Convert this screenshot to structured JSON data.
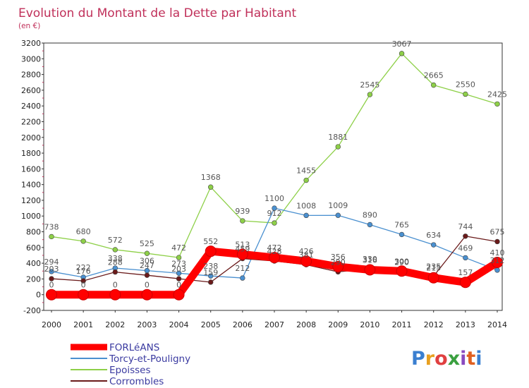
{
  "chart_data": {
    "type": "line",
    "title": "Evolution du Montant de la Dette par Habitant",
    "subtitle": "(en €)",
    "xlabel": "",
    "ylabel": "",
    "x": [
      "2000",
      "2001",
      "2002",
      "2003",
      "2004",
      "2005",
      "2006",
      "2007",
      "2008",
      "2009",
      "2010",
      "2011",
      "2012",
      "2013",
      "2014"
    ],
    "ylim": [
      -200,
      3200
    ],
    "yticks": [
      -200,
      0,
      200,
      400,
      600,
      800,
      1000,
      1200,
      1400,
      1600,
      1800,
      2000,
      2200,
      2400,
      2600,
      2800,
      3000,
      3200
    ],
    "grid": false,
    "legend_position": "bottom-left",
    "series": [
      {
        "name": "FORLéANS",
        "color": "#ff0000",
        "values": [
          0,
          0,
          0,
          0,
          0,
          552,
          513,
          472,
          426,
          356,
          316,
          300,
          215,
          157,
          410
        ],
        "labels": [
          "0",
          "0",
          "0",
          "0",
          "0",
          "552",
          "513",
          "472",
          "426",
          "356",
          "316",
          "300",
          "215",
          "157",
          "410"
        ]
      },
      {
        "name": "Torcy-et-Pouligny",
        "color": "#4a90d0",
        "values": [
          294,
          222,
          338,
          306,
          273,
          238,
          212,
          1100,
          1008,
          1009,
          890,
          765,
          634,
          469,
          312
        ],
        "labels": [
          "294",
          "222",
          "338",
          "306",
          "273",
          "238",
          "212",
          "1100",
          "1008",
          "1009",
          "890",
          "765",
          "634",
          "469",
          "312"
        ]
      },
      {
        "name": "Epoisses",
        "color": "#8ed048",
        "values": [
          738,
          680,
          572,
          525,
          472,
          1368,
          939,
          912,
          1455,
          1881,
          2545,
          3067,
          2665,
          2550,
          2425
        ],
        "labels": [
          "738",
          "680",
          "572",
          "525",
          "472",
          "1368",
          "939",
          "912",
          "1455",
          "1881",
          "2545",
          "3067",
          "2665",
          "2550",
          "2425"
        ]
      },
      {
        "name": "Corrombles",
        "color": "#6a1a1a",
        "values": [
          203,
          176,
          288,
          247,
          203,
          159,
          459,
          428,
          381,
          290,
          330,
          290,
          235,
          744,
          675
        ],
        "labels": [
          "203",
          "176",
          "288",
          "247",
          "203",
          "159",
          "459",
          "428",
          "381",
          "290",
          "330",
          "290",
          "235",
          "744",
          "675"
        ]
      }
    ]
  },
  "watermark": "Proxiti"
}
